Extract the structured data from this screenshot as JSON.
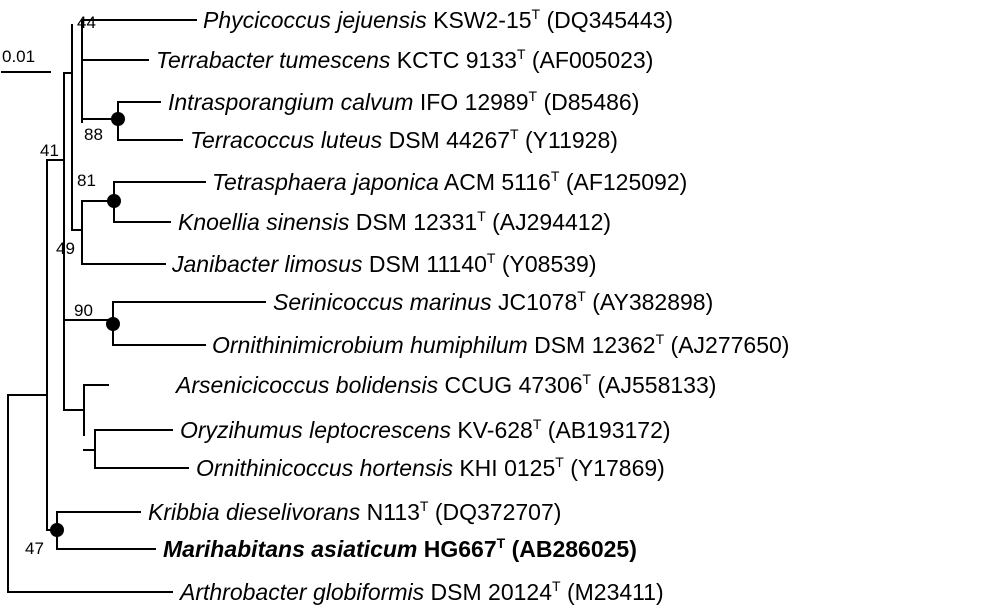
{
  "scale_bar": {
    "label": "0.01"
  },
  "taxa": [
    {
      "genus_species": "Phycicoccus jejuensis",
      "strain": "KSW2-15",
      "type": "T",
      "accession": "(DQ345443)",
      "bold": false
    },
    {
      "genus_species": "Terrabacter tumescens",
      "strain": "KCTC 9133",
      "type": "T",
      "accession": "(AF005023)",
      "bold": false
    },
    {
      "genus_species": "Intrasporangium calvum",
      "strain": "IFO 12989",
      "type": "T",
      "accession": "(D85486)",
      "bold": false
    },
    {
      "genus_species": "Terracoccus luteus",
      "strain": "DSM 44267",
      "type": "T",
      "accession": "(Y11928)",
      "bold": false
    },
    {
      "genus_species": "Tetrasphaera japonica",
      "strain": "ACM 5116",
      "type": "T",
      "accession": "(AF125092)",
      "bold": false
    },
    {
      "genus_species": "Knoellia sinensis",
      "strain": "DSM 12331",
      "type": "T",
      "accession": "(AJ294412)",
      "bold": false
    },
    {
      "genus_species": "Janibacter limosus",
      "strain": "DSM 11140",
      "type": "T",
      "accession": "(Y08539)",
      "bold": false
    },
    {
      "genus_species": "Serinicoccus marinus",
      "strain": "JC1078",
      "type": "T",
      "accession": "(AY382898)",
      "bold": false
    },
    {
      "genus_species": "Ornithinimicrobium humiphilum",
      "strain": "DSM 12362",
      "type": "T",
      "accession": "(AJ277650)",
      "bold": false
    },
    {
      "genus_species": "Arsenicicoccus bolidensis",
      "strain": "CCUG 47306",
      "type": "T",
      "accession": "(AJ558133)",
      "bold": false
    },
    {
      "genus_species": "Oryzihumus leptocrescens",
      "strain": "KV-628",
      "type": "T",
      "accession": "(AB193172)",
      "bold": false
    },
    {
      "genus_species": "Ornithinicoccus hortensis",
      "strain": "KHI 0125",
      "type": "T",
      "accession": "(Y17869)",
      "bold": false
    },
    {
      "genus_species": "Kribbia dieselivorans",
      "strain": "N113",
      "type": "T",
      "accession": "(DQ372707)",
      "bold": false
    },
    {
      "genus_species": "Marihabitans asiaticum",
      "strain": "HG667",
      "type": "T",
      "accession": "(AB286025)",
      "bold": true
    },
    {
      "genus_species": "Arthrobacter globiformis",
      "strain": "DSM 20124",
      "type": "T",
      "accession": "(M23411)",
      "bold": false
    }
  ],
  "bootstrap_values": [
    "44",
    "88",
    "41",
    "81",
    "49",
    "90",
    "47"
  ],
  "colors": {
    "line": "#000000",
    "text": "#000000",
    "node_marker": "#000000"
  }
}
